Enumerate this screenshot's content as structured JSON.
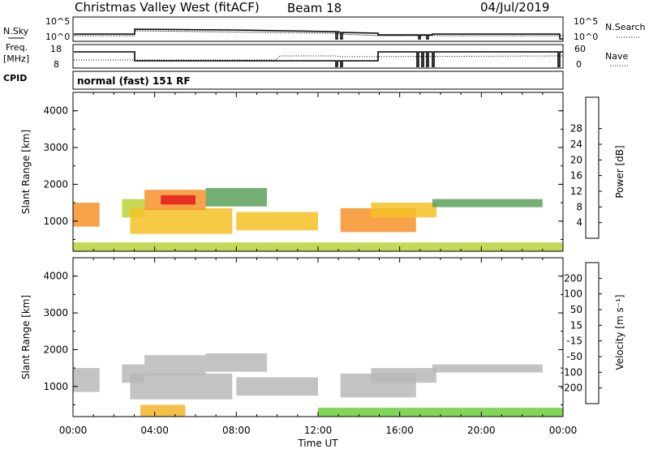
{
  "header": {
    "station": "Christmas Valley West (fitACF)",
    "beam": "Beam 18",
    "date": "04/Jul/2019"
  },
  "params": {
    "nsky_label": "N.Sky",
    "nsearch_label": "N.Search",
    "freq_label_1": "Freq.",
    "freq_label_2": "[MHz]",
    "nave_label": "Nave",
    "cpid_label": "CPID",
    "cpid_value": "normal (fast) 151 RF",
    "noise_ticks": [
      "10^5",
      "10^0"
    ],
    "freq_ticks": [
      "18",
      "8"
    ],
    "nave_ticks": [
      "60",
      "0"
    ]
  },
  "axes": {
    "xlabel": "Time UT",
    "ylabel": "Slant Range [km]",
    "x_ticks": [
      "00:00",
      "04:00",
      "08:00",
      "12:00",
      "16:00",
      "20:00",
      "00:00"
    ],
    "y_ticks": [
      "1000",
      "2000",
      "3000",
      "4000"
    ]
  },
  "colorbars": {
    "power": {
      "label": "Power [dB]",
      "ticks": [
        "4",
        "8",
        "12",
        "16",
        "20",
        "24",
        "28"
      ],
      "colors": [
        "#0000ff",
        "#2a4fd0",
        "#3d7f7a",
        "#5aa05a",
        "#bcd13a",
        "#f6c126",
        "#f7922a",
        "#ef5a1e",
        "#e31a1a"
      ]
    },
    "velocity": {
      "label": "Velocity [m s⁻¹]",
      "ticks": [
        "200",
        "100",
        "50",
        "15",
        "-15",
        "-50",
        "-100",
        "-200"
      ],
      "colors": [
        "#1a1aa8",
        "#2c5ab8",
        "#3d8f6a",
        "#6ccf3a",
        "#b8b8b8",
        "#f2b52a",
        "#f28a1a",
        "#ee5a14",
        "#e01a1a"
      ]
    }
  },
  "chart_data": [
    {
      "type": "heatmap",
      "title": "Power",
      "xlabel": "Time UT",
      "ylabel": "Slant Range [km]",
      "xlim": [
        0,
        24
      ],
      "ylim": [
        180,
        4500
      ],
      "value_label": "Power [dB]",
      "value_range": [
        0,
        30
      ],
      "regions": [
        {
          "t0": 0.0,
          "t1": 1.3,
          "r0": 850,
          "r1": 1500,
          "v": 20
        },
        {
          "t0": 2.4,
          "t1": 3.5,
          "r0": 1100,
          "r1": 1600,
          "v": 14
        },
        {
          "t0": 2.8,
          "t1": 7.8,
          "r0": 650,
          "r1": 1350,
          "v": 18
        },
        {
          "t0": 3.5,
          "t1": 6.5,
          "r0": 1300,
          "r1": 1850,
          "v": 22
        },
        {
          "t0": 4.3,
          "t1": 6.0,
          "r0": 1450,
          "r1": 1700,
          "v": 27
        },
        {
          "t0": 6.5,
          "t1": 9.5,
          "r0": 1400,
          "r1": 1900,
          "v": 12
        },
        {
          "t0": 8.0,
          "t1": 12.0,
          "r0": 750,
          "r1": 1250,
          "v": 18
        },
        {
          "t0": 13.1,
          "t1": 16.8,
          "r0": 700,
          "r1": 1350,
          "v": 20
        },
        {
          "t0": 14.6,
          "t1": 17.8,
          "r0": 1100,
          "r1": 1500,
          "v": 19
        },
        {
          "t0": 17.6,
          "t1": 23.0,
          "r0": 1380,
          "r1": 1600,
          "v": 12
        },
        {
          "t0": 0.0,
          "t1": 24.0,
          "r0": 180,
          "r1": 420,
          "v": 14
        }
      ]
    },
    {
      "type": "heatmap",
      "title": "Velocity",
      "xlabel": "Time UT",
      "ylabel": "Slant Range [km]",
      "xlim": [
        0,
        24
      ],
      "ylim": [
        180,
        4500
      ],
      "value_label": "Velocity [m s⁻¹]",
      "value_range": [
        -250,
        250
      ],
      "regions": [
        {
          "t0": 0.0,
          "t1": 1.3,
          "r0": 850,
          "r1": 1500,
          "v": 0
        },
        {
          "t0": 2.4,
          "t1": 3.5,
          "r0": 1100,
          "r1": 1600,
          "v": 0
        },
        {
          "t0": 2.8,
          "t1": 7.8,
          "r0": 650,
          "r1": 1350,
          "v": 0
        },
        {
          "t0": 3.5,
          "t1": 6.5,
          "r0": 1300,
          "r1": 1850,
          "v": 0
        },
        {
          "t0": 6.5,
          "t1": 9.5,
          "r0": 1400,
          "r1": 1900,
          "v": 0
        },
        {
          "t0": 8.0,
          "t1": 12.0,
          "r0": 750,
          "r1": 1250,
          "v": 0
        },
        {
          "t0": 13.1,
          "t1": 16.8,
          "r0": 700,
          "r1": 1350,
          "v": 0
        },
        {
          "t0": 14.6,
          "t1": 17.8,
          "r0": 1100,
          "r1": 1500,
          "v": 0
        },
        {
          "t0": 17.6,
          "t1": 23.0,
          "r0": 1380,
          "r1": 1600,
          "v": 0
        },
        {
          "t0": 3.3,
          "t1": 5.5,
          "r0": 180,
          "r1": 500,
          "v": -60
        },
        {
          "t0": 12.0,
          "t1": 24.0,
          "r0": 180,
          "r1": 420,
          "v": 40
        }
      ]
    }
  ]
}
